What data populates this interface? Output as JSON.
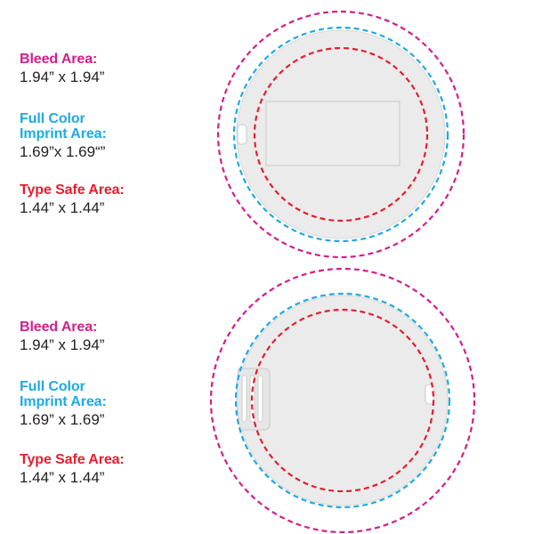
{
  "colors": {
    "bleed": "#d21f8a",
    "imprint": "#1fa9e1",
    "safe": "#e2202e",
    "card_fill": "#ebebeb",
    "card_stroke": "#d6d6d6",
    "text": "#231f20"
  },
  "diagrams": [
    {
      "bleed": {
        "title": "Bleed Area:",
        "value": "1.94” x 1.94”"
      },
      "imprint": {
        "title_line1": "Full Color",
        "title_line2": "Imprint Area:",
        "value": "1.69”x 1.69“”"
      },
      "safe": {
        "title": "Type Safe Area:",
        "value": "1.44” x 1.44”"
      }
    },
    {
      "bleed": {
        "title": "Bleed Area:",
        "value": "1.94” x 1.94”"
      },
      "imprint": {
        "title_line1": "Full Color",
        "title_line2": "Imprint Area:",
        "value": "1.69” x 1.69”"
      },
      "safe": {
        "title": "Type Safe Area:",
        "value": "1.44” x 1.44”"
      }
    }
  ]
}
